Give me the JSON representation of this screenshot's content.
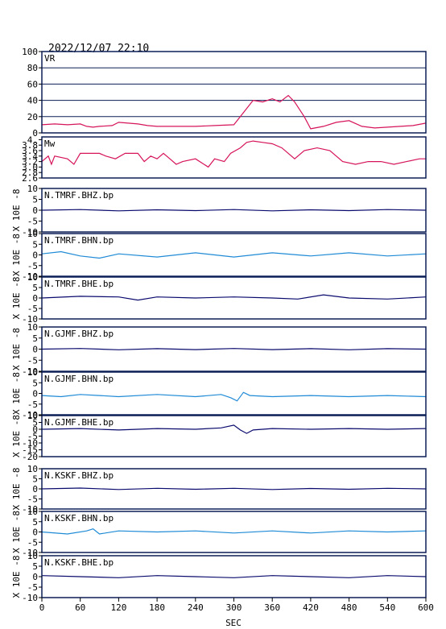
{
  "chart_data": {
    "type": "line",
    "title": "2022/12/07 22:10",
    "xlabel": "SEC",
    "xlim": [
      0,
      600
    ],
    "xticks": [
      0,
      60,
      120,
      180,
      240,
      300,
      360,
      420,
      480,
      540,
      600
    ],
    "colors": {
      "frame": "#0b1e57",
      "vr": "#d6145a",
      "dark_trace": "#0a0a6e",
      "light_trace": "#1f8ad6"
    },
    "panels": [
      {
        "label": "VR",
        "ylabel": "",
        "ylim": [
          0,
          100
        ],
        "yticks": [
          0,
          20,
          40,
          60,
          80,
          100
        ],
        "grid": true,
        "color": "#d6145a",
        "points": [
          [
            0,
            10
          ],
          [
            20,
            11
          ],
          [
            40,
            10
          ],
          [
            60,
            11
          ],
          [
            70,
            8
          ],
          [
            80,
            7
          ],
          [
            90,
            8
          ],
          [
            110,
            9
          ],
          [
            120,
            13
          ],
          [
            135,
            12
          ],
          [
            150,
            11
          ],
          [
            165,
            9
          ],
          [
            180,
            8
          ],
          [
            210,
            8
          ],
          [
            240,
            8
          ],
          [
            270,
            9
          ],
          [
            300,
            10
          ],
          [
            310,
            20
          ],
          [
            320,
            30
          ],
          [
            330,
            40
          ],
          [
            345,
            38
          ],
          [
            360,
            42
          ],
          [
            372,
            38
          ],
          [
            385,
            46
          ],
          [
            395,
            38
          ],
          [
            410,
            20
          ],
          [
            420,
            5
          ],
          [
            440,
            8
          ],
          [
            460,
            13
          ],
          [
            480,
            15
          ],
          [
            500,
            8
          ],
          [
            520,
            6
          ],
          [
            540,
            7
          ],
          [
            560,
            8
          ],
          [
            580,
            9
          ],
          [
            600,
            12
          ]
        ]
      },
      {
        "label": "Mw",
        "ylabel": "",
        "ylim": [
          2.6,
          4.1
        ],
        "yticks": [
          2.6,
          2.8,
          3.0,
          3.2,
          3.4,
          3.6,
          3.8,
          4.0
        ],
        "ytick_labels": [
          "2.6",
          "2.8",
          "3.0",
          "3.2",
          "3.4",
          "3.6",
          "3.8",
          "4."
        ],
        "grid": false,
        "color": "#d6145a",
        "points": [
          [
            0,
            3.2
          ],
          [
            10,
            3.4
          ],
          [
            15,
            3.1
          ],
          [
            20,
            3.4
          ],
          [
            40,
            3.3
          ],
          [
            50,
            3.1
          ],
          [
            60,
            3.5
          ],
          [
            90,
            3.5
          ],
          [
            100,
            3.4
          ],
          [
            115,
            3.3
          ],
          [
            130,
            3.5
          ],
          [
            150,
            3.5
          ],
          [
            160,
            3.2
          ],
          [
            170,
            3.4
          ],
          [
            180,
            3.3
          ],
          [
            190,
            3.5
          ],
          [
            200,
            3.3
          ],
          [
            210,
            3.1
          ],
          [
            220,
            3.2
          ],
          [
            240,
            3.3
          ],
          [
            260,
            3.0
          ],
          [
            270,
            3.3
          ],
          [
            285,
            3.2
          ],
          [
            295,
            3.5
          ],
          [
            310,
            3.7
          ],
          [
            320,
            3.9
          ],
          [
            330,
            3.95
          ],
          [
            345,
            3.9
          ],
          [
            360,
            3.85
          ],
          [
            375,
            3.7
          ],
          [
            385,
            3.5
          ],
          [
            395,
            3.3
          ],
          [
            410,
            3.6
          ],
          [
            430,
            3.7
          ],
          [
            450,
            3.6
          ],
          [
            470,
            3.2
          ],
          [
            490,
            3.1
          ],
          [
            510,
            3.2
          ],
          [
            530,
            3.2
          ],
          [
            550,
            3.1
          ],
          [
            570,
            3.2
          ],
          [
            590,
            3.3
          ],
          [
            600,
            3.3
          ]
        ]
      },
      {
        "label": "N.TMRF.BHZ.bp",
        "ylabel": "X 10E -8",
        "ylim": [
          -10,
          10
        ],
        "yticks": [
          -10,
          -5,
          0,
          5,
          10
        ],
        "grid": false,
        "color": "#0a0a6e",
        "points": [
          [
            0,
            0
          ],
          [
            60,
            0.3
          ],
          [
            120,
            -0.3
          ],
          [
            180,
            0.2
          ],
          [
            240,
            -0.2
          ],
          [
            300,
            0.3
          ],
          [
            360,
            -0.3
          ],
          [
            420,
            0.2
          ],
          [
            480,
            -0.2
          ],
          [
            540,
            0.3
          ],
          [
            600,
            0
          ]
        ]
      },
      {
        "label": "N.TMRF.BHN.bp",
        "ylabel": "X 10E -8",
        "ylim": [
          -10,
          10
        ],
        "yticks": [
          -10,
          -5,
          0,
          5,
          10
        ],
        "grid": false,
        "color": "#1f8ad6",
        "points": [
          [
            0,
            0.5
          ],
          [
            30,
            1.5
          ],
          [
            60,
            -0.5
          ],
          [
            90,
            -1.5
          ],
          [
            120,
            0.5
          ],
          [
            180,
            -1
          ],
          [
            240,
            1
          ],
          [
            300,
            -1
          ],
          [
            360,
            1
          ],
          [
            420,
            -0.5
          ],
          [
            480,
            1
          ],
          [
            540,
            -0.5
          ],
          [
            600,
            0.5
          ]
        ]
      },
      {
        "label": "N.TMRF.BHE.bp",
        "ylabel": "X 10E -8",
        "ylim": [
          -10,
          10
        ],
        "yticks": [
          -10,
          -5,
          0,
          5,
          10
        ],
        "grid": false,
        "color": "#0a0a6e",
        "points": [
          [
            0,
            0
          ],
          [
            60,
            0.8
          ],
          [
            120,
            0.5
          ],
          [
            150,
            -1
          ],
          [
            180,
            0.5
          ],
          [
            240,
            0
          ],
          [
            300,
            0.5
          ],
          [
            360,
            0
          ],
          [
            400,
            -0.5
          ],
          [
            440,
            1.5
          ],
          [
            480,
            0
          ],
          [
            540,
            -0.5
          ],
          [
            600,
            0.5
          ]
        ]
      },
      {
        "label": "N.GJMF.BHZ.bp",
        "ylabel": "X 10E -8",
        "ylim": [
          -10,
          10
        ],
        "yticks": [
          -10,
          -5,
          0,
          5,
          10
        ],
        "grid": false,
        "color": "#0a0a6e",
        "points": [
          [
            0,
            0
          ],
          [
            60,
            0.3
          ],
          [
            120,
            -0.3
          ],
          [
            180,
            0.2
          ],
          [
            240,
            -0.2
          ],
          [
            300,
            0.3
          ],
          [
            360,
            -0.2
          ],
          [
            420,
            0.2
          ],
          [
            480,
            -0.3
          ],
          [
            540,
            0.2
          ],
          [
            600,
            0
          ]
        ]
      },
      {
        "label": "N.GJMF.BHN.bp",
        "ylabel": "X 10E -8",
        "ylim": [
          -10,
          10
        ],
        "yticks": [
          -10,
          -5,
          0,
          5,
          10
        ],
        "grid": false,
        "color": "#1f8ad6",
        "points": [
          [
            0,
            -1
          ],
          [
            30,
            -1.5
          ],
          [
            60,
            -0.5
          ],
          [
            90,
            -1
          ],
          [
            120,
            -1.5
          ],
          [
            180,
            -0.5
          ],
          [
            240,
            -1.5
          ],
          [
            280,
            -0.5
          ],
          [
            295,
            -2
          ],
          [
            305,
            -3.5
          ],
          [
            315,
            0.5
          ],
          [
            325,
            -1
          ],
          [
            360,
            -1.5
          ],
          [
            420,
            -1
          ],
          [
            480,
            -1.5
          ],
          [
            540,
            -1
          ],
          [
            600,
            -1.5
          ]
        ]
      },
      {
        "label": "N.GJMF.BHE.bp",
        "ylabel": "X 10E -8",
        "ylim": [
          -20,
          10
        ],
        "yticks": [
          -20,
          -15,
          -10,
          -5,
          0,
          5,
          10
        ],
        "grid": false,
        "color": "#0a0a6e",
        "points": [
          [
            0,
            0
          ],
          [
            60,
            0.5
          ],
          [
            120,
            -0.5
          ],
          [
            180,
            0.5
          ],
          [
            240,
            0
          ],
          [
            280,
            1
          ],
          [
            300,
            3
          ],
          [
            310,
            -0.5
          ],
          [
            320,
            -3
          ],
          [
            330,
            -0.5
          ],
          [
            360,
            0.5
          ],
          [
            420,
            0
          ],
          [
            480,
            0.5
          ],
          [
            540,
            0
          ],
          [
            600,
            0.5
          ]
        ]
      },
      {
        "label": "N.KSKF.BHZ.bp",
        "ylabel": "X 10E -8",
        "ylim": [
          -10,
          10
        ],
        "yticks": [
          -10,
          -5,
          0,
          5,
          10
        ],
        "grid": false,
        "color": "#0a0a6e",
        "points": [
          [
            0,
            0
          ],
          [
            60,
            0.4
          ],
          [
            120,
            -0.3
          ],
          [
            180,
            0.3
          ],
          [
            240,
            -0.2
          ],
          [
            300,
            0.3
          ],
          [
            360,
            -0.3
          ],
          [
            420,
            0.2
          ],
          [
            480,
            -0.2
          ],
          [
            540,
            0.3
          ],
          [
            600,
            0
          ]
        ]
      },
      {
        "label": "N.KSKF.BHN.bp",
        "ylabel": "X 10E -8",
        "ylim": [
          -10,
          10
        ],
        "yticks": [
          -10,
          -5,
          0,
          5,
          10
        ],
        "grid": false,
        "color": "#1f8ad6",
        "points": [
          [
            0,
            0
          ],
          [
            40,
            -1
          ],
          [
            70,
            0.5
          ],
          [
            80,
            1.5
          ],
          [
            90,
            -1
          ],
          [
            120,
            0.5
          ],
          [
            180,
            0
          ],
          [
            240,
            0.5
          ],
          [
            300,
            -0.5
          ],
          [
            360,
            0.5
          ],
          [
            420,
            -0.5
          ],
          [
            480,
            0.5
          ],
          [
            540,
            0
          ],
          [
            600,
            0.5
          ]
        ]
      },
      {
        "label": "N.KSKF.BHE.bp",
        "ylabel": "X 10E -8",
        "ylim": [
          -10,
          10
        ],
        "yticks": [
          -10,
          -5,
          0,
          5,
          10
        ],
        "grid": false,
        "color": "#0a0a6e",
        "points": [
          [
            0,
            0.5
          ],
          [
            60,
            0
          ],
          [
            120,
            -0.5
          ],
          [
            180,
            0.5
          ],
          [
            240,
            0
          ],
          [
            300,
            -0.5
          ],
          [
            360,
            0.5
          ],
          [
            420,
            0
          ],
          [
            480,
            -0.5
          ],
          [
            540,
            0.5
          ],
          [
            600,
            0
          ]
        ]
      }
    ]
  }
}
